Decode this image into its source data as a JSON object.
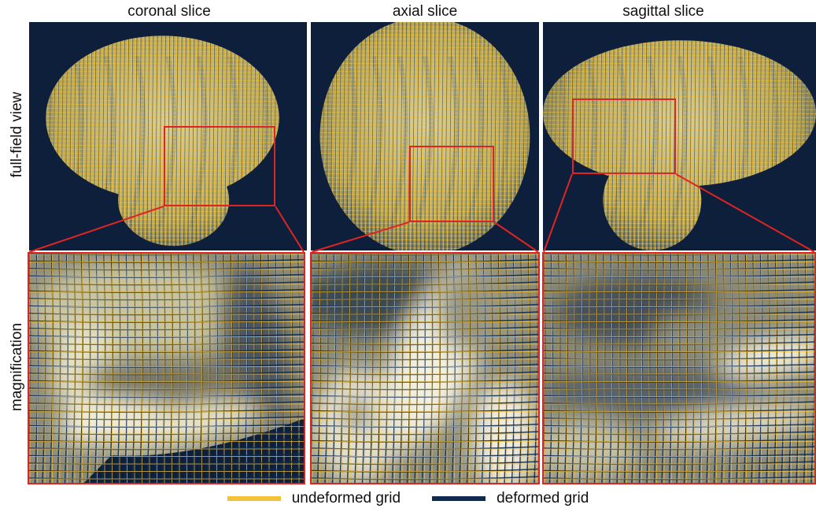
{
  "columns": {
    "coronal": "coronal slice",
    "axial": "axial slice",
    "sagittal": "sagittal slice"
  },
  "rows": {
    "full": "full-field view",
    "magnification": "magnification"
  },
  "legend": {
    "undeformed": "undeformed grid",
    "deformed": "deformed grid",
    "undeformed_color": "#f4c23a",
    "deformed_color": "#0e2a4f"
  },
  "colors": {
    "highlight": "#e02424",
    "background": "#0d1f3a"
  }
}
